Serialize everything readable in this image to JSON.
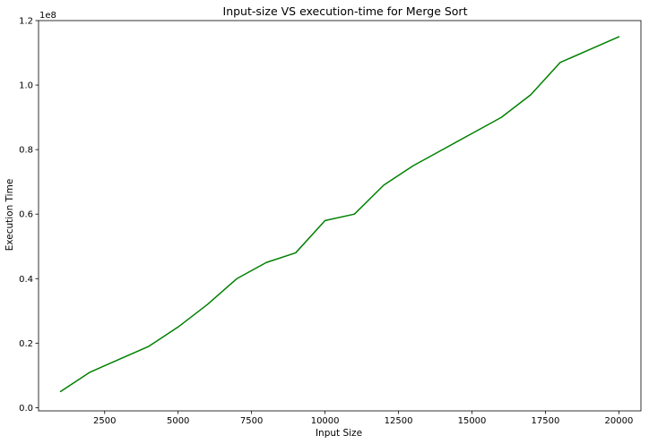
{
  "chart_data": {
    "type": "line",
    "title": "Input-size VS execution-time for Merge Sort",
    "xlabel": "Input Size",
    "ylabel": "Execution Time",
    "y_offset_label": "1e8",
    "xlim": [
      250,
      20750
    ],
    "ylim": [
      -1000000,
      120000000
    ],
    "xticks": [
      2500,
      5000,
      7500,
      10000,
      12500,
      15000,
      17500,
      20000
    ],
    "xtick_labels": [
      "2500",
      "5000",
      "7500",
      "10000",
      "12500",
      "15000",
      "17500",
      "20000"
    ],
    "yticks": [
      0,
      20000000,
      40000000,
      60000000,
      80000000,
      100000000,
      120000000
    ],
    "ytick_labels": [
      "0.0",
      "0.2",
      "0.4",
      "0.6",
      "0.8",
      "1.0",
      "1.2"
    ],
    "grid": false,
    "series": [
      {
        "color": "#008000",
        "x": [
          1000,
          2000,
          3000,
          4000,
          5000,
          6000,
          7000,
          8000,
          9000,
          10000,
          11000,
          12000,
          13000,
          14000,
          15000,
          16000,
          17000,
          18000,
          19000,
          20000
        ],
        "y": [
          5000000,
          11000000,
          15000000,
          19000000,
          25000000,
          32000000,
          40000000,
          45000000,
          48000000,
          58000000,
          60000000,
          69000000,
          75000000,
          80000000,
          85000000,
          90000000,
          97000000,
          107000000,
          111000000,
          115000000
        ]
      }
    ]
  }
}
